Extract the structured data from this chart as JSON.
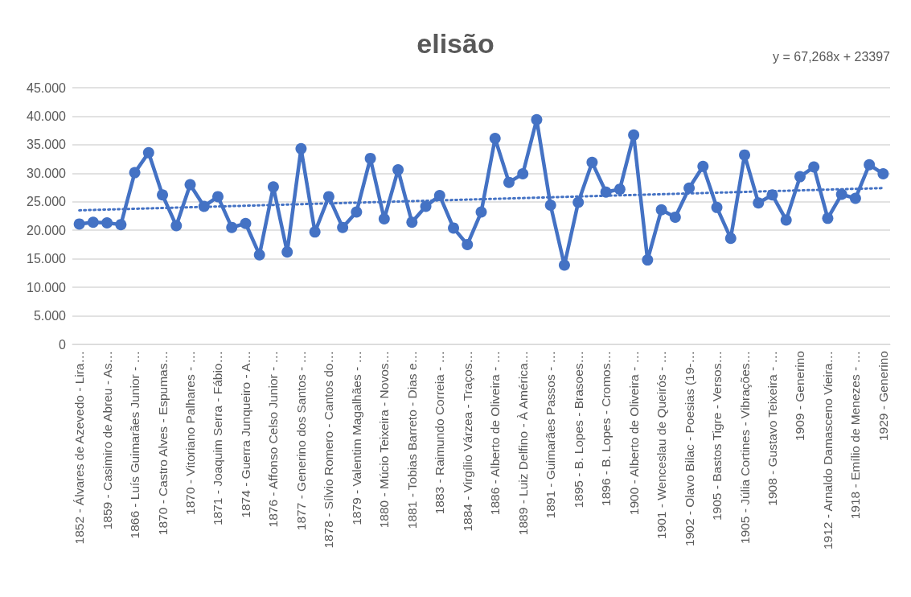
{
  "chart_data": {
    "type": "line",
    "title": "elisão",
    "annotations": [
      "y = 67,268x + 23397"
    ],
    "categories": [
      "1852 - Álvares de Azevedo - Lira…",
      null,
      "1859 - Casimiro de Abreu - As…",
      null,
      "1866 - Luís Guimarães Junior - …",
      null,
      "1870 - Castro Alves - Espumas…",
      null,
      "1870 - Vitoriano Palhares - …",
      null,
      "1871 - Joaquim Serra - Fábio…",
      null,
      "1874 - Guerra Junqueiro - A…",
      null,
      "1876 - Affonso Celso Junior - …",
      null,
      "1877 - Generino dos Santos - …",
      null,
      "1878 - Sílvio Romero - Cantos do…",
      null,
      "1879 - Valentim Magalhães - …",
      null,
      "1880 - Múcio Teixeira - Novos…",
      null,
      "1881 - Tobias Barreto - Dias e…",
      null,
      "1883 - Raimundo Correia - …",
      null,
      "1884 - Virgílio Várzea - Traços…",
      null,
      "1886 - Alberto de Oliveira - …",
      null,
      "1889 - Luiz Delfino - À América…",
      null,
      "1891 - Guimarães Passos - …",
      null,
      "1895 - B. Lopes - Brasoes…",
      null,
      "1896 - B. Lopes - Cromos…",
      null,
      "1900 - Alberto de Oliveira - …",
      null,
      "1901 - Wenceslau de Queirós - …",
      null,
      "1902 - Olavo Bilac - Poesias (19-…",
      null,
      "1905 - Bastos Tigre - Versos…",
      null,
      "1905 - Júlia Cortines - Vibrações…",
      null,
      "1908 - Gustavo Teixeira - …",
      null,
      "1909 - Generino",
      null,
      "1912 - Arnaldo Damasceno Vieira…",
      null,
      "1918 - Emílio de Menezes - …",
      null,
      "1929 - Generino"
    ],
    "series": [
      {
        "color": "#4472c4",
        "marker": "circle",
        "line_style": "solid",
        "values": [
          21100,
          21400,
          21300,
          21000,
          30100,
          33600,
          26200,
          20800,
          28000,
          24200,
          25900,
          20500,
          21200,
          15700,
          27600,
          16200,
          34300,
          19700,
          25900,
          20500,
          23200,
          32600,
          22000,
          30600,
          21400,
          24200,
          26100,
          20400,
          17500,
          23200,
          36100,
          28400,
          29900,
          39400,
          24400,
          13900,
          24900,
          31900,
          26700,
          27200,
          36700,
          14800,
          23600,
          22300,
          27400,
          31200,
          24000,
          18600,
          33200,
          24800,
          26200,
          21800,
          29400,
          31100,
          22100,
          26300,
          25600,
          31500,
          29900
        ]
      },
      {
        "type": "line",
        "color": "#4472c4",
        "marker": "none",
        "line_style": "dotted",
        "x": [
          "1852 - Álvares de Azevedo - Lira…",
          "1929 - Generino"
        ],
        "values": [
          23500,
          27400
        ]
      }
    ],
    "ylim": [
      0,
      45000
    ],
    "yticks": [
      {
        "value": 0,
        "label": "0"
      },
      {
        "value": 5000,
        "label": "5.000"
      },
      {
        "value": 10000,
        "label": "10.000"
      },
      {
        "value": 15000,
        "label": "15.000"
      },
      {
        "value": 20000,
        "label": "20.000"
      },
      {
        "value": 25000,
        "label": "25.000"
      },
      {
        "value": 30000,
        "label": "30.000"
      },
      {
        "value": 35000,
        "label": "35.000"
      },
      {
        "value": 40000,
        "label": "40.000"
      },
      {
        "value": 45000,
        "label": "45.000"
      }
    ],
    "grid": "y"
  }
}
